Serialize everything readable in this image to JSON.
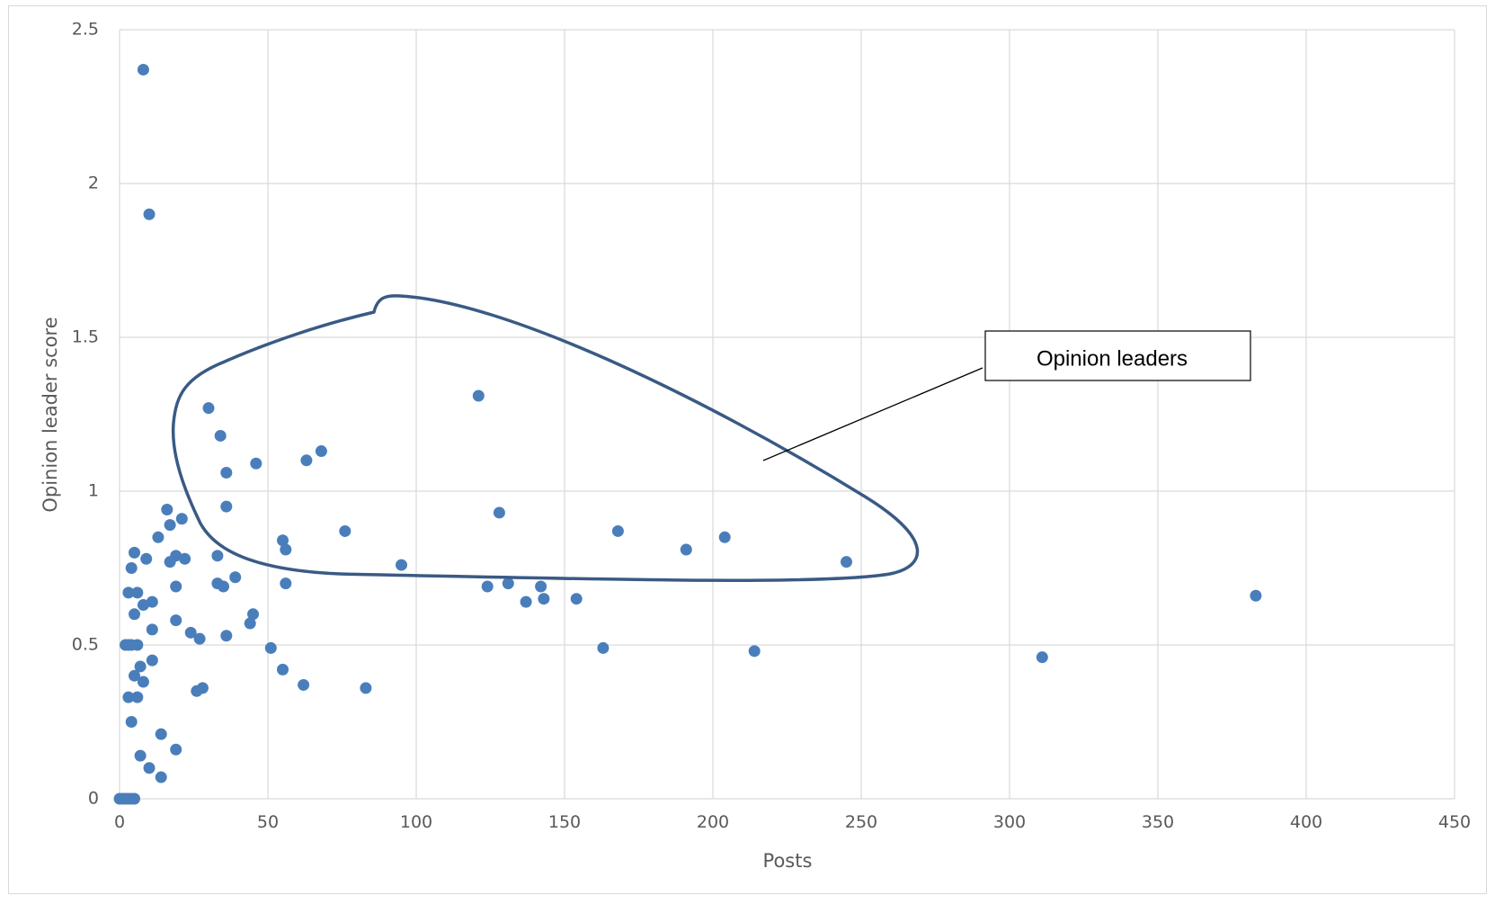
{
  "chart_data": {
    "type": "scatter",
    "title": "",
    "xlabel": "Posts",
    "ylabel": "Opinion leader score",
    "xlim": [
      0,
      450
    ],
    "ylim": [
      0,
      2.5
    ],
    "x_ticks": [
      "0",
      "50",
      "100",
      "150",
      "200",
      "250",
      "300",
      "350",
      "400",
      "450"
    ],
    "y_ticks": [
      "0",
      "0.5",
      "1",
      "1.5",
      "2",
      "2.5"
    ],
    "grid": "both",
    "legend": "none",
    "series_color": "#4a7ebb",
    "outline_color": "#3a5a85",
    "annotation": {
      "text": "Opinion leaders",
      "encloses": "cluster of points with roughly 25 to 265 posts and score 0.7 to 1.6"
    },
    "points": [
      {
        "x": 8,
        "y": 2.37
      },
      {
        "x": 10,
        "y": 1.9
      },
      {
        "x": 121,
        "y": 1.31
      },
      {
        "x": 30,
        "y": 1.27
      },
      {
        "x": 34,
        "y": 1.18
      },
      {
        "x": 68,
        "y": 1.13
      },
      {
        "x": 63,
        "y": 1.1
      },
      {
        "x": 46,
        "y": 1.09
      },
      {
        "x": 36,
        "y": 1.06
      },
      {
        "x": 36,
        "y": 0.95
      },
      {
        "x": 16,
        "y": 0.94
      },
      {
        "x": 128,
        "y": 0.93
      },
      {
        "x": 21,
        "y": 0.91
      },
      {
        "x": 17,
        "y": 0.89
      },
      {
        "x": 76,
        "y": 0.87
      },
      {
        "x": 168,
        "y": 0.87
      },
      {
        "x": 204,
        "y": 0.85
      },
      {
        "x": 13,
        "y": 0.85
      },
      {
        "x": 55,
        "y": 0.84
      },
      {
        "x": 5,
        "y": 0.8
      },
      {
        "x": 56,
        "y": 0.81
      },
      {
        "x": 191,
        "y": 0.81
      },
      {
        "x": 33,
        "y": 0.79
      },
      {
        "x": 19,
        "y": 0.79
      },
      {
        "x": 9,
        "y": 0.78
      },
      {
        "x": 22,
        "y": 0.78
      },
      {
        "x": 17,
        "y": 0.77
      },
      {
        "x": 245,
        "y": 0.77
      },
      {
        "x": 95,
        "y": 0.76
      },
      {
        "x": 4,
        "y": 0.75
      },
      {
        "x": 39,
        "y": 0.72
      },
      {
        "x": 33,
        "y": 0.7
      },
      {
        "x": 56,
        "y": 0.7
      },
      {
        "x": 131,
        "y": 0.7
      },
      {
        "x": 35,
        "y": 0.69
      },
      {
        "x": 19,
        "y": 0.69
      },
      {
        "x": 124,
        "y": 0.69
      },
      {
        "x": 142,
        "y": 0.69
      },
      {
        "x": 3,
        "y": 0.67
      },
      {
        "x": 6,
        "y": 0.67
      },
      {
        "x": 383,
        "y": 0.66
      },
      {
        "x": 143,
        "y": 0.65
      },
      {
        "x": 154,
        "y": 0.65
      },
      {
        "x": 11,
        "y": 0.64
      },
      {
        "x": 137,
        "y": 0.64
      },
      {
        "x": 8,
        "y": 0.63
      },
      {
        "x": 5,
        "y": 0.6
      },
      {
        "x": 45,
        "y": 0.6
      },
      {
        "x": 19,
        "y": 0.58
      },
      {
        "x": 44,
        "y": 0.57
      },
      {
        "x": 11,
        "y": 0.55
      },
      {
        "x": 24,
        "y": 0.54
      },
      {
        "x": 36,
        "y": 0.53
      },
      {
        "x": 27,
        "y": 0.52
      },
      {
        "x": 2,
        "y": 0.5
      },
      {
        "x": 3,
        "y": 0.5
      },
      {
        "x": 4,
        "y": 0.5
      },
      {
        "x": 6,
        "y": 0.5
      },
      {
        "x": 51,
        "y": 0.49
      },
      {
        "x": 163,
        "y": 0.49
      },
      {
        "x": 214,
        "y": 0.48
      },
      {
        "x": 311,
        "y": 0.46
      },
      {
        "x": 11,
        "y": 0.45
      },
      {
        "x": 7,
        "y": 0.43
      },
      {
        "x": 55,
        "y": 0.42
      },
      {
        "x": 5,
        "y": 0.4
      },
      {
        "x": 8,
        "y": 0.38
      },
      {
        "x": 62,
        "y": 0.37
      },
      {
        "x": 83,
        "y": 0.36
      },
      {
        "x": 28,
        "y": 0.36
      },
      {
        "x": 26,
        "y": 0.35
      },
      {
        "x": 3,
        "y": 0.33
      },
      {
        "x": 6,
        "y": 0.33
      },
      {
        "x": 4,
        "y": 0.25
      },
      {
        "x": 14,
        "y": 0.21
      },
      {
        "x": 19,
        "y": 0.16
      },
      {
        "x": 7,
        "y": 0.14
      },
      {
        "x": 10,
        "y": 0.1
      },
      {
        "x": 14,
        "y": 0.07
      },
      {
        "x": 0,
        "y": 0
      },
      {
        "x": 1,
        "y": 0
      },
      {
        "x": 2,
        "y": 0
      },
      {
        "x": 3,
        "y": 0
      },
      {
        "x": 4,
        "y": 0
      },
      {
        "x": 5,
        "y": 0
      }
    ]
  }
}
